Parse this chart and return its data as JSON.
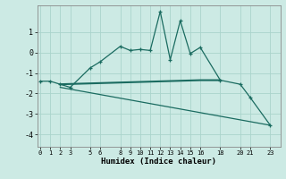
{
  "title": "",
  "xlabel": "Humidex (Indice chaleur)",
  "bg_color": "#cceae4",
  "grid_color": "#aad4cc",
  "line_color": "#1a6b60",
  "line1_x": [
    0,
    1,
    2,
    3,
    5,
    6,
    8,
    9,
    10,
    11,
    12,
    13,
    14,
    15,
    16,
    18,
    20,
    21,
    23
  ],
  "line1_y": [
    -1.4,
    -1.4,
    -1.55,
    -1.7,
    -0.75,
    -0.45,
    0.3,
    0.1,
    0.15,
    0.1,
    2.0,
    -0.35,
    1.55,
    -0.05,
    0.25,
    -1.35,
    -1.55,
    -2.2,
    -3.55
  ],
  "line2_x": [
    2,
    23
  ],
  "line2_y": [
    -1.7,
    -3.55
  ],
  "line3_x": [
    2,
    16,
    18
  ],
  "line3_y": [
    -1.55,
    -1.35,
    -1.35
  ],
  "xticks": [
    0,
    1,
    2,
    3,
    5,
    6,
    8,
    9,
    10,
    11,
    12,
    13,
    14,
    15,
    16,
    18,
    20,
    21,
    23
  ],
  "yticks": [
    -4,
    -3,
    -2,
    -1,
    0,
    1
  ],
  "ylim": [
    -4.6,
    2.3
  ],
  "xlim": [
    -0.3,
    24.0
  ]
}
